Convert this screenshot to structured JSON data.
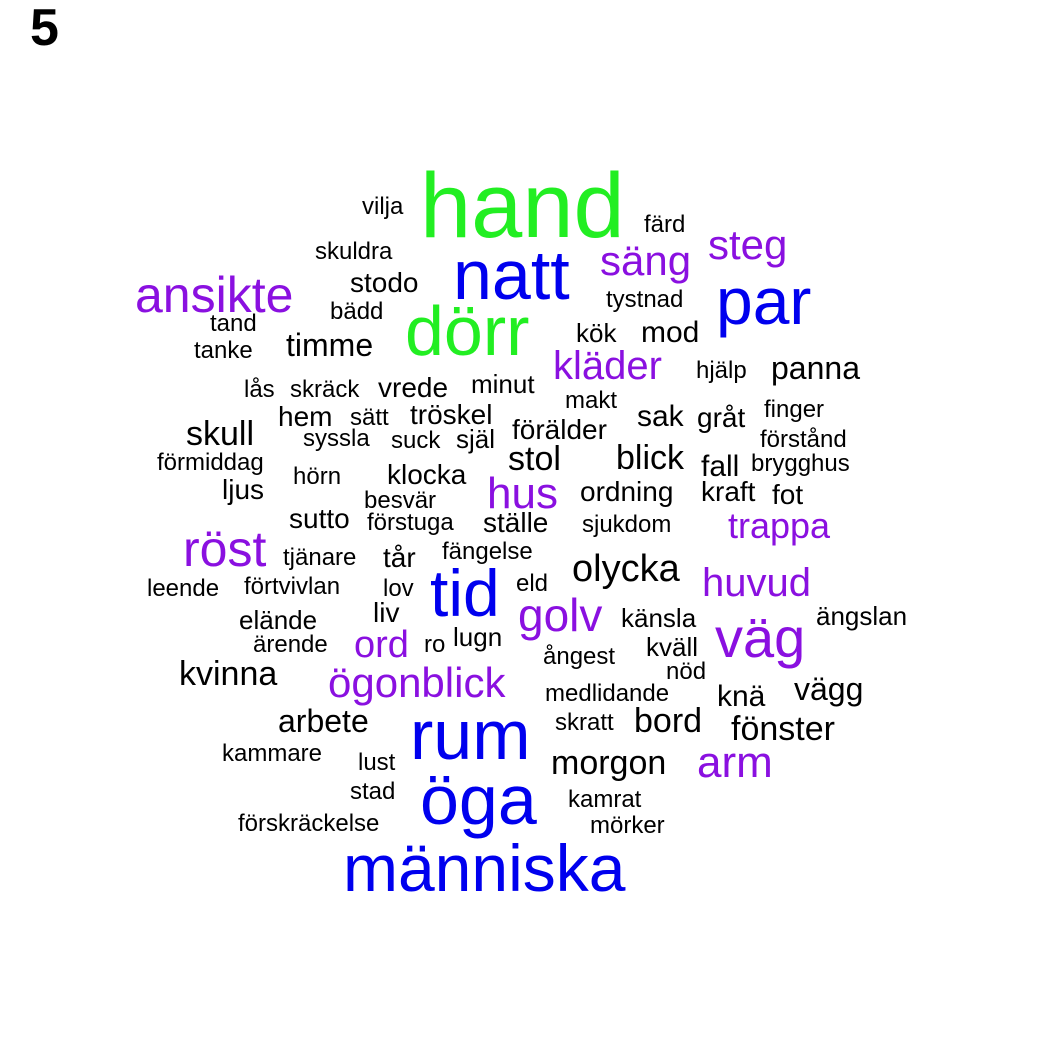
{
  "panel_label": "5",
  "colors": {
    "top": "#22ee22",
    "large": "#0000ee",
    "mid": "#8a10e0",
    "small": "#000000"
  },
  "words": [
    {
      "text": "hand",
      "tier": "top"
    },
    {
      "text": "natt",
      "tier": "large"
    },
    {
      "text": "dörr",
      "tier": "top"
    },
    {
      "text": "par",
      "tier": "large"
    },
    {
      "text": "tid",
      "tier": "large"
    },
    {
      "text": "rum",
      "tier": "large"
    },
    {
      "text": "öga",
      "tier": "large"
    },
    {
      "text": "människa",
      "tier": "large"
    },
    {
      "text": "ansikte",
      "tier": "mid"
    },
    {
      "text": "säng",
      "tier": "mid"
    },
    {
      "text": "steg",
      "tier": "mid"
    },
    {
      "text": "kläder",
      "tier": "mid"
    },
    {
      "text": "hus",
      "tier": "mid"
    },
    {
      "text": "röst",
      "tier": "mid"
    },
    {
      "text": "trappa",
      "tier": "mid"
    },
    {
      "text": "huvud",
      "tier": "mid"
    },
    {
      "text": "golv",
      "tier": "mid"
    },
    {
      "text": "väg",
      "tier": "mid"
    },
    {
      "text": "ord",
      "tier": "mid"
    },
    {
      "text": "ögonblick",
      "tier": "mid"
    },
    {
      "text": "arm",
      "tier": "mid"
    },
    {
      "text": "vilja",
      "tier": "small"
    },
    {
      "text": "färd",
      "tier": "small"
    },
    {
      "text": "skuldra",
      "tier": "small"
    },
    {
      "text": "stodo",
      "tier": "small"
    },
    {
      "text": "tystnad",
      "tier": "small"
    },
    {
      "text": "bädd",
      "tier": "small"
    },
    {
      "text": "tand",
      "tier": "small"
    },
    {
      "text": "tanke",
      "tier": "small"
    },
    {
      "text": "timme",
      "tier": "small"
    },
    {
      "text": "kök",
      "tier": "small"
    },
    {
      "text": "mod",
      "tier": "small"
    },
    {
      "text": "hjälp",
      "tier": "small"
    },
    {
      "text": "panna",
      "tier": "small"
    },
    {
      "text": "lås",
      "tier": "small"
    },
    {
      "text": "skräck",
      "tier": "small"
    },
    {
      "text": "vrede",
      "tier": "small"
    },
    {
      "text": "minut",
      "tier": "small"
    },
    {
      "text": "makt",
      "tier": "small"
    },
    {
      "text": "hem",
      "tier": "small"
    },
    {
      "text": "sätt",
      "tier": "small"
    },
    {
      "text": "tröskel",
      "tier": "small"
    },
    {
      "text": "sak",
      "tier": "small"
    },
    {
      "text": "gråt",
      "tier": "small"
    },
    {
      "text": "finger",
      "tier": "small"
    },
    {
      "text": "skull",
      "tier": "small"
    },
    {
      "text": "syssla",
      "tier": "small"
    },
    {
      "text": "suck",
      "tier": "small"
    },
    {
      "text": "själ",
      "tier": "small"
    },
    {
      "text": "förälder",
      "tier": "small"
    },
    {
      "text": "förstånd",
      "tier": "small"
    },
    {
      "text": "förmiddag",
      "tier": "small"
    },
    {
      "text": "stol",
      "tier": "small"
    },
    {
      "text": "blick",
      "tier": "small"
    },
    {
      "text": "fall",
      "tier": "small"
    },
    {
      "text": "brygghus",
      "tier": "small"
    },
    {
      "text": "hörn",
      "tier": "small"
    },
    {
      "text": "klocka",
      "tier": "small"
    },
    {
      "text": "ljus",
      "tier": "small"
    },
    {
      "text": "besvär",
      "tier": "small"
    },
    {
      "text": "ordning",
      "tier": "small"
    },
    {
      "text": "kraft",
      "tier": "small"
    },
    {
      "text": "fot",
      "tier": "small"
    },
    {
      "text": "sutto",
      "tier": "small"
    },
    {
      "text": "förstuga",
      "tier": "small"
    },
    {
      "text": "ställe",
      "tier": "small"
    },
    {
      "text": "sjukdom",
      "tier": "small"
    },
    {
      "text": "fängelse",
      "tier": "small"
    },
    {
      "text": "tjänare",
      "tier": "small"
    },
    {
      "text": "tår",
      "tier": "small"
    },
    {
      "text": "olycka",
      "tier": "small"
    },
    {
      "text": "leende",
      "tier": "small"
    },
    {
      "text": "förtvivlan",
      "tier": "small"
    },
    {
      "text": "lov",
      "tier": "small"
    },
    {
      "text": "eld",
      "tier": "small"
    },
    {
      "text": "liv",
      "tier": "small"
    },
    {
      "text": "elände",
      "tier": "small"
    },
    {
      "text": "känsla",
      "tier": "small"
    },
    {
      "text": "ängslan",
      "tier": "small"
    },
    {
      "text": "ärende",
      "tier": "small"
    },
    {
      "text": "ro",
      "tier": "small"
    },
    {
      "text": "lugn",
      "tier": "small"
    },
    {
      "text": "kväll",
      "tier": "small"
    },
    {
      "text": "ångest",
      "tier": "small"
    },
    {
      "text": "kvinna",
      "tier": "small"
    },
    {
      "text": "nöd",
      "tier": "small"
    },
    {
      "text": "medlidande",
      "tier": "small"
    },
    {
      "text": "knä",
      "tier": "small"
    },
    {
      "text": "vägg",
      "tier": "small"
    },
    {
      "text": "arbete",
      "tier": "small"
    },
    {
      "text": "skratt",
      "tier": "small"
    },
    {
      "text": "bord",
      "tier": "small"
    },
    {
      "text": "fönster",
      "tier": "small"
    },
    {
      "text": "kammare",
      "tier": "small"
    },
    {
      "text": "lust",
      "tier": "small"
    },
    {
      "text": "morgon",
      "tier": "small"
    },
    {
      "text": "stad",
      "tier": "small"
    },
    {
      "text": "kamrat",
      "tier": "small"
    },
    {
      "text": "förskräckelse",
      "tier": "small"
    },
    {
      "text": "mörker",
      "tier": "small"
    }
  ]
}
